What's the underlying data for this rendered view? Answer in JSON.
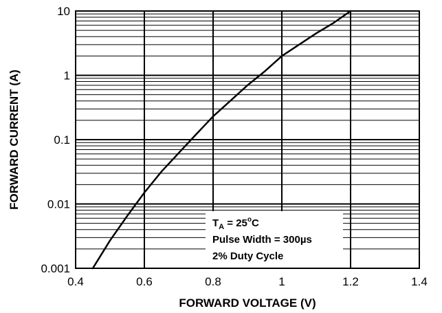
{
  "chart_data": {
    "type": "line",
    "title": "",
    "xlabel": "FORWARD VOLTAGE (V)",
    "ylabel": "FORWARD CURRENT (A)",
    "xlim": [
      0.4,
      1.4
    ],
    "ylim": [
      0.001,
      10
    ],
    "yscale": "log",
    "grid": true,
    "x_ticks": [
      "0.4",
      "0.6",
      "0.8",
      "1",
      "1.2",
      "1.4"
    ],
    "y_ticks": [
      "0.001",
      "0.01",
      "0.1",
      "1",
      "10"
    ],
    "series": [
      {
        "x": [
          0.45,
          0.5,
          0.55,
          0.6,
          0.65,
          0.7,
          0.75,
          0.8,
          0.85,
          0.9,
          0.95,
          1.0,
          1.05,
          1.1,
          1.15,
          1.2
        ],
        "y": [
          0.001,
          0.0027,
          0.0065,
          0.015,
          0.032,
          0.062,
          0.12,
          0.23,
          0.4,
          0.7,
          1.15,
          2.0,
          3.0,
          4.5,
          6.5,
          10
        ]
      }
    ],
    "annotation": {
      "line1_main": "T",
      "line1_sub": "A",
      "line1_mid": " = 25",
      "line1_sup": "o",
      "line1_end": "C",
      "line2": "Pulse Width = 300µs",
      "line3": "2% Duty Cycle"
    }
  }
}
